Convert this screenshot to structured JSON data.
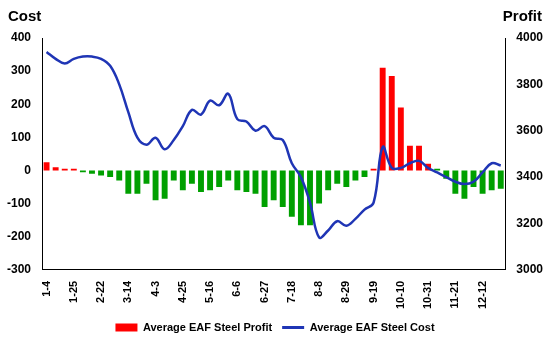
{
  "chart_data": {
    "type": "bar",
    "y_label": "Cost",
    "y2_label": "Profit",
    "categories": [
      "1-4",
      null,
      null,
      "1-25",
      null,
      null,
      "2-22",
      null,
      null,
      "3-14",
      null,
      null,
      "4-3",
      null,
      null,
      "4-25",
      null,
      null,
      "5-16",
      null,
      null,
      "6-6",
      null,
      null,
      "6-27",
      null,
      null,
      "7-18",
      null,
      null,
      "8-8",
      null,
      null,
      "8-29",
      null,
      null,
      "9-19",
      null,
      null,
      "10-10",
      null,
      null,
      "10-31",
      null,
      null,
      "11-21",
      null,
      null,
      "12-12",
      null,
      null
    ],
    "series": [
      {
        "name": "Average EAF Steel Profit",
        "type": "bar",
        "axis": "y",
        "color": "#ff0000",
        "colors": [
          "#ff0000",
          "#ff0000",
          "#ff0000",
          "#ff0000",
          "#00a000",
          "#00a000",
          "#00a000",
          "#00a000",
          "#00a000",
          "#00a000",
          "#00a000",
          "#00a000",
          "#00a000",
          "#00a000",
          "#00a000",
          "#00a000",
          "#00a000",
          "#00a000",
          "#00a000",
          "#00a000",
          "#00a000",
          "#00a000",
          "#00a000",
          "#00a000",
          "#00a000",
          "#00a000",
          "#00a000",
          "#00a000",
          "#00a000",
          "#00a000",
          "#00a000",
          "#00a000",
          "#00a000",
          "#00a000",
          "#00a000",
          "#00a000",
          "#ff0000",
          "#ff0000",
          "#ff0000",
          "#ff0000",
          "#ff0000",
          "#ff0000",
          "#ff0000",
          "#00a000",
          "#00a000",
          "#00a000",
          "#00a000",
          "#00a000",
          "#00a000",
          "#00a000",
          "#00a000"
        ],
        "values": [
          25,
          10,
          5,
          5,
          -5,
          -10,
          -15,
          -20,
          -30,
          -70,
          -70,
          -40,
          -90,
          -85,
          -30,
          -60,
          -40,
          -65,
          -60,
          -50,
          -30,
          -60,
          -65,
          -70,
          -110,
          -90,
          -110,
          -140,
          -165,
          -165,
          -100,
          -60,
          -40,
          -50,
          -30,
          -20,
          5,
          310,
          285,
          190,
          75,
          75,
          20,
          5,
          -25,
          -70,
          -85,
          -50,
          -70,
          -60,
          -55
        ]
      },
      {
        "name": "Average EAF Steel Cost",
        "type": "line",
        "axis": "y2",
        "color": "#1f35b5",
        "values": [
          3940,
          3910,
          3890,
          3910,
          3920,
          3920,
          3910,
          3880,
          3800,
          3680,
          3570,
          3540,
          3570,
          3520,
          3560,
          3620,
          3690,
          3670,
          3730,
          3710,
          3760,
          3650,
          3640,
          3600,
          3620,
          3570,
          3560,
          3460,
          3400,
          3290,
          3140,
          3170,
          3210,
          3190,
          3220,
          3260,
          3290,
          3530,
          3440,
          3440,
          3460,
          3470,
          3440,
          3420,
          3400,
          3380,
          3370,
          3380,
          3420,
          3460,
          3450
        ]
      }
    ],
    "ylim": [
      -300,
      400
    ],
    "yticks": [
      -300,
      -200,
      -100,
      0,
      100,
      200,
      300,
      400
    ],
    "y2lim": [
      3000,
      4000
    ],
    "y2ticks": [
      3000,
      3200,
      3400,
      3600,
      3800,
      4000
    ],
    "grid": false,
    "legend": "bottom"
  }
}
